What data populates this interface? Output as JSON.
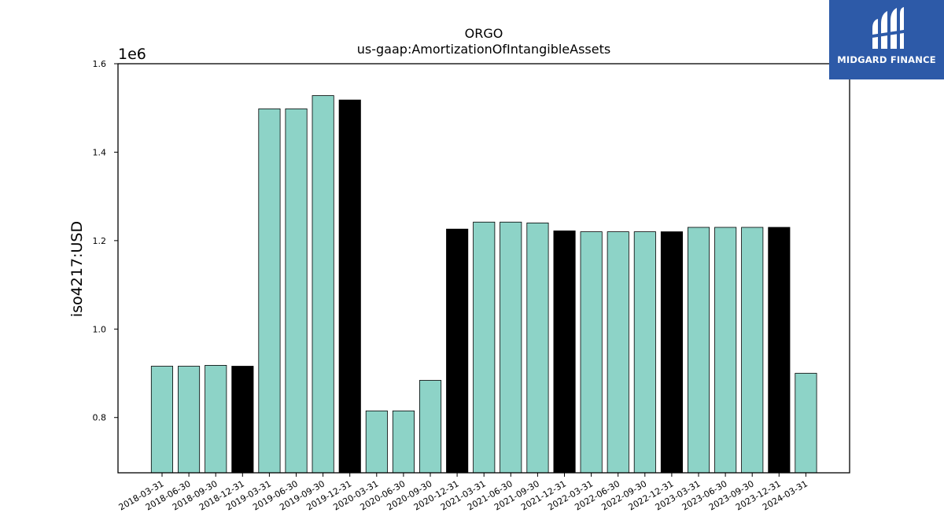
{
  "brand": {
    "name": "MIDGARD FINANCE",
    "bg_color": "#2d5aa8",
    "text_color": "#ffffff"
  },
  "colors": {
    "q_bar": "#8dd3c7",
    "fy_bar": "#000000",
    "edge": "#000000"
  },
  "chart_data": {
    "type": "bar",
    "title": "ORGO",
    "subtitle": "us-gaap:AmortizationOfIntangibleAssets",
    "xlabel": "",
    "ylabel": "iso4217:USD",
    "y_offset_label": "1e6",
    "ylim": [
      675000,
      1600000
    ],
    "yticks": [
      800000,
      1000000,
      1200000,
      1400000,
      1600000
    ],
    "ytick_labels": [
      "0.8",
      "1.0",
      "1.2",
      "1.4",
      "1.6"
    ],
    "grid": false,
    "categories": [
      "2018-03-31",
      "2018-06-30",
      "2018-09-30",
      "2018-12-31",
      "2019-03-31",
      "2019-06-30",
      "2019-09-30",
      "2019-12-31",
      "2020-03-31",
      "2020-06-30",
      "2020-09-30",
      "2020-12-31",
      "2021-03-31",
      "2021-06-30",
      "2021-09-30",
      "2021-12-31",
      "2022-03-31",
      "2022-06-30",
      "2022-09-30",
      "2022-12-31",
      "2023-03-31",
      "2023-06-30",
      "2023-09-30",
      "2023-12-31",
      "2024-03-31"
    ],
    "values": [
      916000,
      916000,
      918000,
      916000,
      1498000,
      1498000,
      1528000,
      1518000,
      815000,
      815000,
      884000,
      1226000,
      1242000,
      1242000,
      1240000,
      1222000,
      1220000,
      1220000,
      1220000,
      1220000,
      1230000,
      1230000,
      1230000,
      1230000,
      900000
    ],
    "bar_kind": [
      "q",
      "q",
      "q",
      "fy",
      "q",
      "q",
      "q",
      "fy",
      "q",
      "q",
      "q",
      "fy",
      "q",
      "q",
      "q",
      "fy",
      "q",
      "q",
      "q",
      "fy",
      "q",
      "q",
      "q",
      "fy",
      "q"
    ]
  }
}
